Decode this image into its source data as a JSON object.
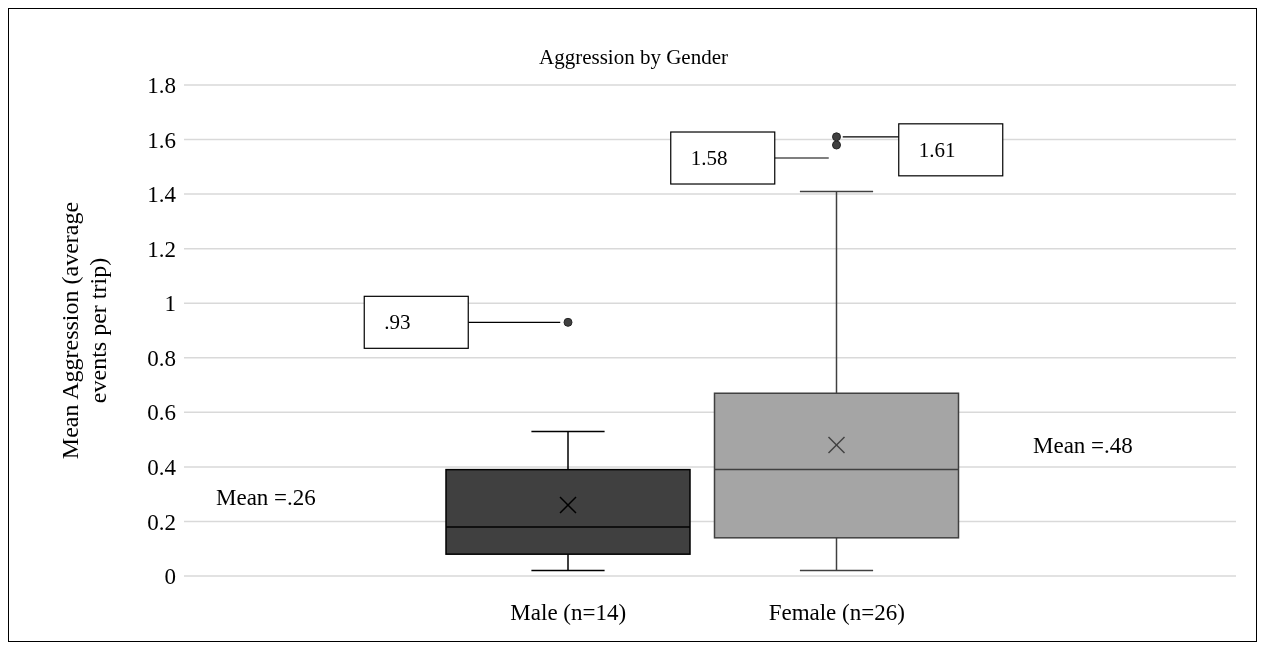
{
  "chart_data": {
    "type": "box",
    "title": "Aggression by Gender",
    "ylabel": "Mean Aggression (average events per trip)",
    "categories": [
      "Male (n=14)",
      "Female (n=26)"
    ],
    "boxes": [
      {
        "low": 0.02,
        "q1": 0.08,
        "median": 0.18,
        "q3": 0.39,
        "high": 0.53,
        "mean": 0.26,
        "outliers": [
          0.93
        ]
      },
      {
        "low": 0.02,
        "q1": 0.14,
        "median": 0.39,
        "q3": 0.67,
        "high": 1.41,
        "mean": 0.48,
        "outliers": [
          1.58,
          1.61
        ]
      }
    ],
    "colors": [
      "#404040",
      "#a5a5a5"
    ],
    "ylim": [
      0,
      1.8
    ],
    "yticks": [
      0,
      0.2,
      0.4,
      0.6,
      0.8,
      1,
      1.2,
      1.4,
      1.6,
      1.8
    ],
    "grid": "y",
    "annotations": [
      "Mean =.26",
      "Mean =.48",
      ".93",
      "1.58",
      "1.61"
    ]
  }
}
